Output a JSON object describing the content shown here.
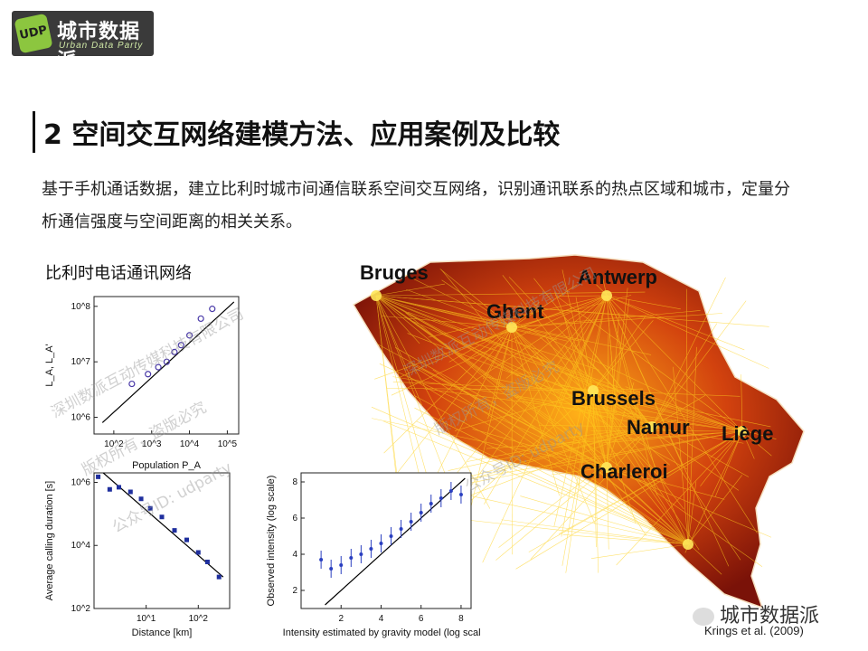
{
  "brand": {
    "logo_badge_text": "UDP",
    "logo_title": "城市数据派",
    "logo_subtitle": "Urban Data Party",
    "colors": {
      "logo_bg": "#3a3a3a",
      "logo_badge": "#8cc63f"
    }
  },
  "slide": {
    "title": "2 空间交互网络建模方法、应用案例及比较",
    "body": "基于手机通话数据，建立比利时城市间通信联系空间交互网络，识别通讯联系的热点区域和城市，定量分析通信强度与空间距离的相关关系。"
  },
  "figure": {
    "caption": "比利时电话通讯网络",
    "map": {
      "cities": [
        "Bruges",
        "Antwerp",
        "Ghent",
        "Brussels",
        "Namur",
        "Liège",
        "Charleroi"
      ],
      "colors": {
        "network": "#ffd21e",
        "base": "#b3200f"
      }
    },
    "credit": "Krings et al. (2009)"
  },
  "watermark": {
    "lines": [
      "深圳数派互动传媒科技有限公司",
      "版权所有，盗版必究",
      "公众号ID: udparty"
    ]
  },
  "footer_brand": {
    "icon": "wechat-icon",
    "text": "城市数据派"
  },
  "chart_data": [
    {
      "type": "scatter",
      "title": "",
      "xlabel": "Population P_A",
      "ylabel": "L_A, L_A'",
      "x_scale": "log",
      "y_scale": "log",
      "xlim": [
        30,
        200000
      ],
      "ylim": [
        500000,
        150000000
      ],
      "x_ticks": [
        "10^2",
        "10^3",
        "10^4",
        "10^5"
      ],
      "y_ticks": [
        "10^6",
        "10^7",
        "10^8"
      ],
      "series": [
        {
          "values": [
            [
              300,
              4000000
            ],
            [
              800,
              6000000
            ],
            [
              1500,
              8000000
            ],
            [
              2500,
              10000000
            ],
            [
              4000,
              15000000
            ],
            [
              6000,
              20000000
            ],
            [
              10000,
              30000000
            ],
            [
              20000,
              60000000
            ],
            [
              40000,
              90000000
            ]
          ]
        }
      ],
      "fit": [
        [
          50,
          800000
        ],
        [
          150000,
          120000000
        ]
      ]
    },
    {
      "type": "scatter",
      "title": "",
      "xlabel": "Distance [km]",
      "ylabel": "Average calling duration [s]",
      "x_scale": "log",
      "y_scale": "log",
      "xlim": [
        1,
        400
      ],
      "ylim": [
        100,
        2000000
      ],
      "x_ticks": [
        "10^1",
        "10^2"
      ],
      "y_ticks": [
        "10^2",
        "10^4",
        "10^6"
      ],
      "series": [
        {
          "values": [
            [
              1.2,
              1500000
            ],
            [
              2,
              600000
            ],
            [
              3,
              700000
            ],
            [
              5,
              500000
            ],
            [
              8,
              300000
            ],
            [
              12,
              150000
            ],
            [
              20,
              80000
            ],
            [
              35,
              30000
            ],
            [
              60,
              15000
            ],
            [
              100,
              6000
            ],
            [
              150,
              3000
            ],
            [
              250,
              1000
            ]
          ]
        }
      ],
      "fit": [
        [
          1.5,
          2000000
        ],
        [
          300,
          1000
        ]
      ]
    },
    {
      "type": "scatter",
      "title": "",
      "xlabel": "Intensity estimated by gravity model (log scale)",
      "ylabel": "Observed intensity (log scale)",
      "xlim": [
        0,
        8.5
      ],
      "ylim": [
        1,
        8.5
      ],
      "x_ticks": [
        "2",
        "4",
        "6",
        "8"
      ],
      "y_ticks": [
        "2",
        "4",
        "6",
        "8"
      ],
      "series": [
        {
          "values": [
            [
              1,
              3.7
            ],
            [
              1.5,
              3.2
            ],
            [
              2,
              3.4
            ],
            [
              2.5,
              3.8
            ],
            [
              3,
              4.0
            ],
            [
              3.5,
              4.3
            ],
            [
              4,
              4.6
            ],
            [
              4.5,
              5.0
            ],
            [
              5,
              5.4
            ],
            [
              5.5,
              5.8
            ],
            [
              6,
              6.3
            ],
            [
              6.5,
              6.8
            ],
            [
              7,
              7.1
            ],
            [
              7.5,
              7.5
            ],
            [
              8,
              7.3
            ]
          ]
        }
      ],
      "fit": [
        [
          1.2,
          1.2
        ],
        [
          8.2,
          8.2
        ]
      ]
    }
  ]
}
